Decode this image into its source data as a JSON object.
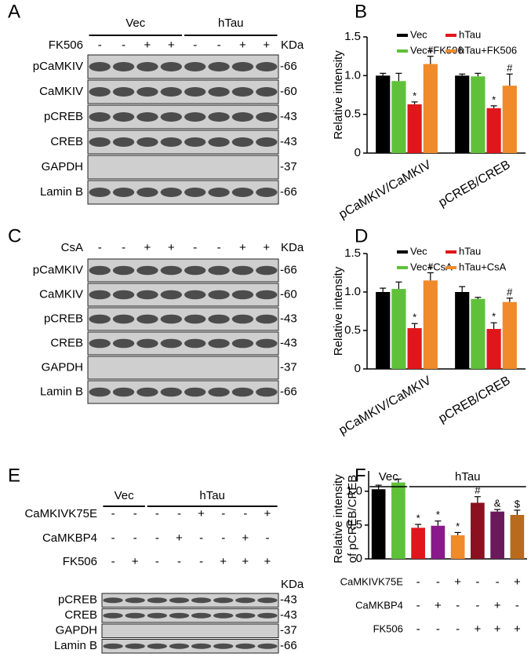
{
  "panels": [
    {
      "label": "A",
      "groups": [
        "Vec",
        "hTau"
      ],
      "treatments": [
        {
          "name": "FK506",
          "signs": [
            "-",
            "-",
            "+",
            "+",
            "-",
            "-",
            "+",
            "+"
          ]
        }
      ],
      "unit": "KDa",
      "rows": [
        {
          "name": "pCaMKIV",
          "kda": "-66"
        },
        {
          "name": "CaMKIV",
          "kda": "-60"
        },
        {
          "name": "pCREB",
          "kda": "-43"
        },
        {
          "name": "CREB",
          "kda": "-43"
        },
        {
          "name": "GAPDH",
          "kda": "-37"
        },
        {
          "name": "Lamin B",
          "kda": "-66"
        }
      ]
    },
    {
      "label": "C",
      "treatments": [
        {
          "name": "CsA",
          "signs": [
            "-",
            "-",
            "+",
            "+",
            "-",
            "-",
            "+",
            "+"
          ]
        }
      ],
      "unit": "KDa",
      "rows": [
        {
          "name": "pCaMKIV",
          "kda": "-66"
        },
        {
          "name": "CaMKIV",
          "kda": "-60"
        },
        {
          "name": "pCREB",
          "kda": "-43"
        },
        {
          "name": "CREB",
          "kda": "-43"
        },
        {
          "name": "GAPDH",
          "kda": "-37"
        },
        {
          "name": "Lamin B",
          "kda": "-66"
        }
      ]
    },
    {
      "label": "E",
      "groups": [
        "Vec",
        "hTau"
      ],
      "treatments": [
        {
          "name": "CaMKIVK75E",
          "signs": [
            "-",
            "-",
            "-",
            "-",
            "+",
            "-",
            "-",
            "+"
          ]
        },
        {
          "name": "CaMKBP4",
          "signs": [
            "-",
            "-",
            "-",
            "+",
            "-",
            "-",
            "+",
            "-"
          ]
        },
        {
          "name": "FK506",
          "signs": [
            "-",
            "+",
            "-",
            "-",
            "-",
            "+",
            "+",
            "+"
          ]
        }
      ],
      "unit": "KDa",
      "rows": [
        {
          "name": "pCREB",
          "kda": "-43"
        },
        {
          "name": "CREB",
          "kda": "-43"
        },
        {
          "name": "GAPDH",
          "kda": "-37"
        },
        {
          "name": "Lamin B",
          "kda": "-66"
        }
      ]
    }
  ],
  "chart_data": [
    {
      "type": "bar",
      "panel_label": "B",
      "ylabel": "Relative intensity",
      "categories": [
        "pCaMKIV/CaMKIV",
        "pCREB/CREB"
      ],
      "series": [
        {
          "name": "Vec",
          "color": "#000000",
          "values": [
            1.0,
            1.0
          ],
          "errors": [
            0.03,
            0.02
          ],
          "annotations": [
            null,
            null
          ]
        },
        {
          "name": "Vec+FK506",
          "color": "#5fc13a",
          "values": [
            0.93,
            0.99
          ],
          "errors": [
            0.1,
            0.04
          ],
          "annotations": [
            null,
            null
          ]
        },
        {
          "name": "hTau",
          "color": "#e0161c",
          "values": [
            0.63,
            0.58
          ],
          "errors": [
            0.03,
            0.03
          ],
          "annotations": [
            "*",
            "*"
          ]
        },
        {
          "name": "hTau+FK506",
          "color": "#f08a2a",
          "values": [
            1.15,
            0.87
          ],
          "errors": [
            0.1,
            0.15
          ],
          "annotations": [
            "#",
            "#"
          ]
        }
      ],
      "ylim": [
        0,
        1.5
      ],
      "yticks": [
        0,
        0.5,
        {
          "value": 1,
          "label": "1.0"
        },
        1.5
      ]
    },
    {
      "type": "bar",
      "panel_label": "D",
      "ylabel": "Relative intensity",
      "categories": [
        "pCaMKIV/CaMKIV",
        "pCREB/CREB"
      ],
      "series": [
        {
          "name": "Vec",
          "color": "#000000",
          "values": [
            1.0,
            1.0
          ],
          "errors": [
            0.05,
            0.07
          ],
          "annotations": [
            null,
            null
          ]
        },
        {
          "name": "Vec+CsA",
          "color": "#5fc13a",
          "values": [
            1.04,
            0.91
          ],
          "errors": [
            0.09,
            0.02
          ],
          "annotations": [
            null,
            null
          ]
        },
        {
          "name": "hTau",
          "color": "#e0161c",
          "values": [
            0.53,
            0.52
          ],
          "errors": [
            0.06,
            0.08
          ],
          "annotations": [
            "*",
            "*"
          ]
        },
        {
          "name": "hTau+CsA",
          "color": "#f08a2a",
          "values": [
            1.15,
            0.87
          ],
          "errors": [
            0.1,
            0.05
          ],
          "annotations": [
            "#",
            "#"
          ]
        }
      ],
      "ylim": [
        0,
        1.5
      ],
      "yticks": [
        0,
        0.5,
        {
          "value": 1,
          "label": "1.0"
        },
        1.5
      ]
    },
    {
      "type": "bar",
      "panel_label": "F",
      "ylabel": [
        "Relative intensity",
        "of pCREB/CREB"
      ],
      "groups": [
        "Vec",
        "hTau"
      ],
      "values": [
        1.03,
        1.13,
        0.46,
        0.49,
        0.35,
        0.83,
        0.7,
        0.65
      ],
      "errors": [
        0.06,
        0.05,
        0.05,
        0.07,
        0.04,
        0.09,
        0.03,
        0.07
      ],
      "colors": [
        "#000000",
        "#5fc13a",
        "#e0161c",
        "#8a1a8a",
        "#f08a2a",
        "#8b1020",
        "#6a1a5a",
        "#b86a1e"
      ],
      "annotations": [
        null,
        null,
        "*",
        "*",
        "*",
        "#",
        "&",
        "$"
      ],
      "treatments": [
        {
          "name": "CaMKIVK75E",
          "signs": [
            null,
            null,
            "-",
            "-",
            "+",
            "-",
            "-",
            "+"
          ]
        },
        {
          "name": "CaMKBP4",
          "signs": [
            null,
            null,
            "-",
            "+",
            "-",
            "-",
            "+",
            "-"
          ]
        },
        {
          "name": "FK506",
          "signs": [
            null,
            null,
            "-",
            "-",
            "-",
            "+",
            "+",
            "+"
          ]
        }
      ],
      "ylim": [
        0,
        1.3
      ],
      "yticks": [
        0,
        0.5,
        {
          "value": 1,
          "label": "1.0"
        }
      ]
    }
  ]
}
